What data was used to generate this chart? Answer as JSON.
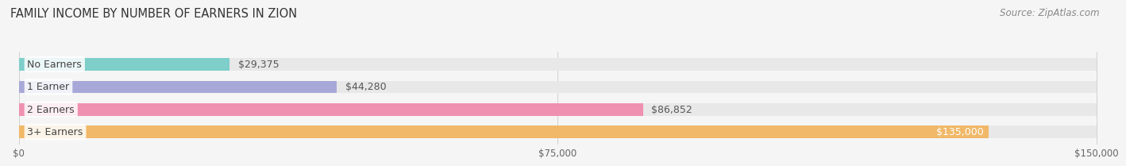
{
  "title": "FAMILY INCOME BY NUMBER OF EARNERS IN ZION",
  "source": "Source: ZipAtlas.com",
  "categories": [
    "No Earners",
    "1 Earner",
    "2 Earners",
    "3+ Earners"
  ],
  "values": [
    29375,
    44280,
    86852,
    135000
  ],
  "bar_colors": [
    "#7ececa",
    "#a8a8d8",
    "#f090b0",
    "#f0b868"
  ],
  "value_labels": [
    "$29,375",
    "$44,280",
    "$86,852",
    "$135,000"
  ],
  "x_tick_labels": [
    "$0",
    "$75,000",
    "$150,000"
  ],
  "x_tick_values": [
    0,
    75000,
    150000
  ],
  "xlim_max": 150000,
  "bar_bg_color": "#e8e8e8",
  "bg_color": "#f5f5f5",
  "title_fontsize": 10.5,
  "source_fontsize": 8.5,
  "label_fontsize": 9,
  "value_fontsize": 9,
  "tick_fontsize": 8.5,
  "grid_color": "#cccccc",
  "label_text_color": "#444444",
  "value_text_color_outside": "#555555",
  "value_text_color_inside": "#ffffff"
}
